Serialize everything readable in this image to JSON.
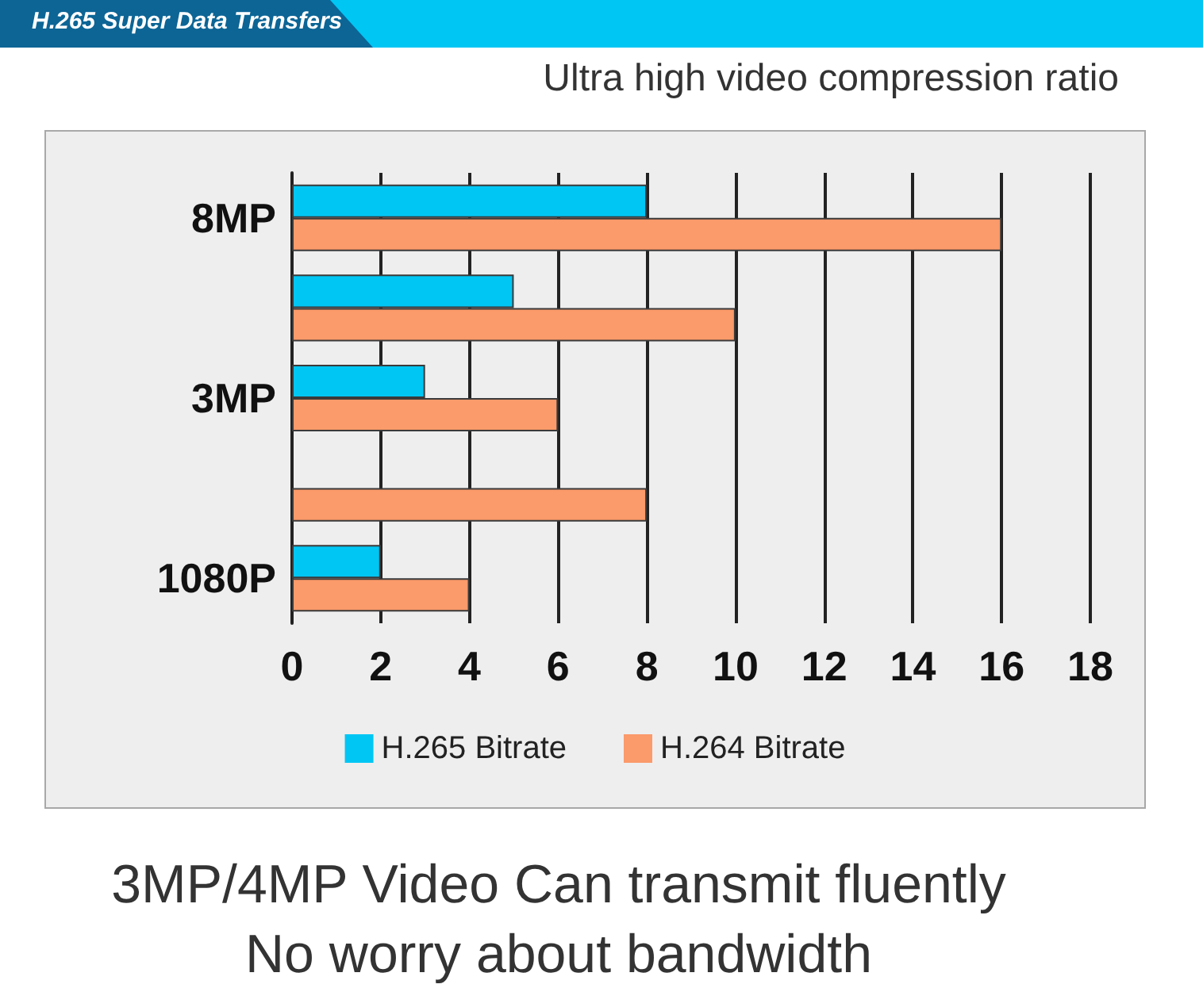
{
  "chart_data": {
    "type": "bar",
    "orientation": "horizontal",
    "title": "H.265 Super Data Transfers",
    "subtitle": "Ultra high video compression ratio",
    "categories": [
      "8MP",
      null,
      "3MP",
      null,
      "1080P"
    ],
    "series": [
      {
        "name": "H.265 Bitrate",
        "color": "#00c6f4",
        "values": [
          8,
          5,
          3,
          null,
          2
        ]
      },
      {
        "name": "H.264 Bitrate",
        "color": "#fb9a6a",
        "values": [
          16,
          10,
          6,
          8,
          4
        ]
      }
    ],
    "xlim": [
      0,
      18
    ],
    "xticks": [
      0,
      2,
      4,
      6,
      8,
      10,
      12,
      14,
      16,
      18
    ],
    "grid": "x",
    "legend": "bottom",
    "annotations": [
      "3MP/4MP Video Can transmit fluently",
      "No worry about bandwidth"
    ]
  }
}
